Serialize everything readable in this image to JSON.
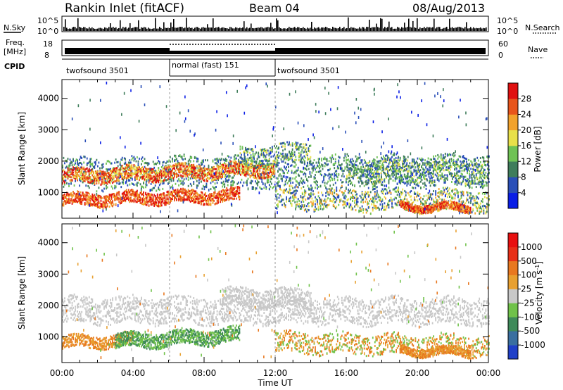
{
  "header": {
    "title": "Rankin Inlet (fitACF)",
    "beam": "Beam 04",
    "date": "08/Aug/2013"
  },
  "strips": {
    "nsky_label": "N.Sky",
    "nsky_top": "10^5",
    "nsky_bottom": "10^0",
    "nsearch_label": "N.Search",
    "nsearch_top": "10^5",
    "nsearch_bottom": "10^0",
    "freq_label": "Freq.",
    "freq_unit": "[MHz]",
    "freq_top": "18",
    "freq_bottom": "8",
    "nave_label": "Nave",
    "nave_top": "60",
    "nave_bottom": "0",
    "cpid_label": "CPID"
  },
  "cpid_segments": [
    {
      "label": "twofsound 3501",
      "start_hour": 0,
      "end_hour": 6
    },
    {
      "label": "normal (fast) 151",
      "start_hour": 6,
      "end_hour": 12
    },
    {
      "label": "twofsound 3501",
      "start_hour": 12,
      "end_hour": 24
    }
  ],
  "chart_data": [
    {
      "type": "heatmap",
      "name": "power",
      "ylabel": "Slant Range [km]",
      "yticks": [
        1000,
        2000,
        3000,
        4000
      ],
      "ylim": [
        180,
        4600
      ],
      "xlim": [
        0,
        24
      ],
      "colorbar": {
        "label": "Power [dB]",
        "ticks": [
          "4",
          "8",
          "12",
          "16",
          "20",
          "24",
          "28"
        ],
        "colors": [
          "#0a1ee6",
          "#2a4fb8",
          "#3f7d5b",
          "#6fc255",
          "#e8e04a",
          "#f2a22c",
          "#e8551b",
          "#e01010"
        ]
      }
    },
    {
      "type": "heatmap",
      "name": "velocity",
      "ylabel": "Slant Range [km]",
      "yticks": [
        1000,
        2000,
        3000,
        4000
      ],
      "ylim": [
        180,
        4600
      ],
      "xlim": [
        0,
        24
      ],
      "xticks": [
        "00:00",
        "04:00",
        "08:00",
        "12:00",
        "16:00",
        "20:00",
        "00:00"
      ],
      "xlabel": "Time UT",
      "colorbar": {
        "label": "Velocity [m s-1]",
        "ticks": [
          "1000",
          "500",
          "100",
          "25",
          "-25",
          "-100",
          "-500",
          "-1000"
        ],
        "colors": [
          "#2040c8",
          "#3a6fa0",
          "#3f8a5a",
          "#70c24a",
          "#c8c8c8",
          "#e8a030",
          "#e87820",
          "#e83018",
          "#e81010"
        ]
      }
    }
  ]
}
